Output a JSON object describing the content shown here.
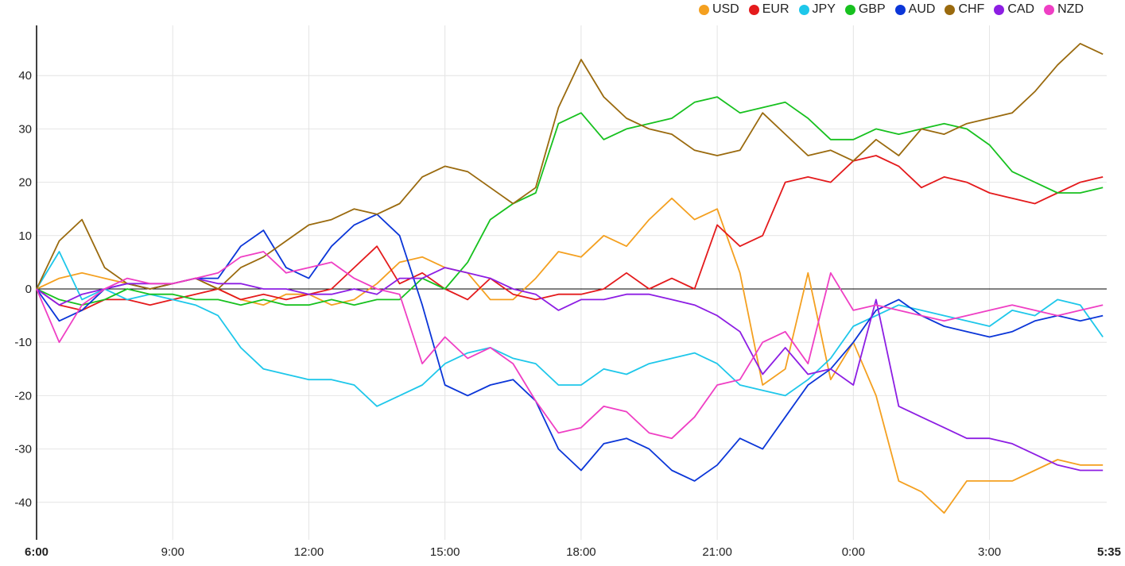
{
  "chart_data": {
    "type": "line",
    "title": "",
    "xlabel": "",
    "ylabel": "",
    "ylim": [
      -47,
      49
    ],
    "x_ticks": [
      "6:00",
      "9:00",
      "12:00",
      "15:00",
      "18:00",
      "21:00",
      "0:00",
      "3:00",
      "5:35"
    ],
    "x_ticks_bold": [
      "6:00",
      "5:35"
    ],
    "y_ticks": [
      40,
      30,
      20,
      10,
      0,
      -10,
      -20,
      -30,
      -40
    ],
    "grid": true,
    "legend_position": "top-right",
    "x_hours": [
      0,
      0.5,
      1,
      1.5,
      2,
      2.5,
      3,
      3.5,
      4,
      4.5,
      5,
      5.5,
      6,
      6.5,
      7,
      7.5,
      8,
      8.5,
      9,
      9.5,
      10,
      10.5,
      11,
      11.5,
      12,
      12.5,
      13,
      13.5,
      14,
      14.5,
      15,
      15.5,
      16,
      16.5,
      17,
      17.5,
      18,
      18.5,
      19,
      19.5,
      20,
      20.5,
      21,
      21.5,
      22,
      22.5,
      23,
      23.5
    ],
    "series": [
      {
        "name": "USD",
        "color": "#f4a020",
        "values": [
          0,
          2,
          3,
          2,
          1,
          0,
          1,
          2,
          0,
          -2,
          -3,
          -1,
          -1,
          -3,
          -2,
          1,
          5,
          6,
          4,
          3,
          -2,
          -2,
          2,
          7,
          6,
          10,
          8,
          13,
          17,
          13,
          15,
          3,
          -18,
          -15,
          3,
          -17,
          -10,
          -20,
          -36,
          -38,
          -42,
          -36,
          -36,
          -36,
          -34,
          -32,
          -33,
          -33
        ]
      },
      {
        "name": "EUR",
        "color": "#e41a1c",
        "values": [
          0,
          -3,
          -4,
          -2,
          -2,
          -3,
          -2,
          -1,
          0,
          -2,
          -1,
          -2,
          -1,
          0,
          4,
          8,
          1,
          3,
          0,
          -2,
          2,
          -1,
          -2,
          -1,
          -1,
          0,
          3,
          0,
          2,
          0,
          12,
          8,
          10,
          20,
          21,
          20,
          24,
          25,
          23,
          19,
          21,
          20,
          18,
          17,
          16,
          18,
          20,
          21
        ]
      },
      {
        "name": "JPY",
        "color": "#1ec7ea",
        "values": [
          0,
          7,
          -2,
          0,
          -2,
          -1,
          -2,
          -3,
          -5,
          -11,
          -15,
          -16,
          -17,
          -17,
          -18,
          -22,
          -20,
          -18,
          -14,
          -12,
          -11,
          -13,
          -14,
          -18,
          -18,
          -15,
          -16,
          -14,
          -13,
          -12,
          -14,
          -18,
          -19,
          -20,
          -17,
          -13,
          -7,
          -5,
          -3,
          -4,
          -5,
          -6,
          -7,
          -4,
          -5,
          -2,
          -3,
          -9
        ]
      },
      {
        "name": "GBP",
        "color": "#17c11f",
        "values": [
          0,
          -2,
          -3,
          -2,
          0,
          -1,
          -1,
          -2,
          -2,
          -3,
          -2,
          -3,
          -3,
          -2,
          -3,
          -2,
          -2,
          2,
          0,
          5,
          13,
          16,
          18,
          31,
          33,
          28,
          30,
          31,
          32,
          35,
          36,
          33,
          34,
          35,
          32,
          28,
          28,
          30,
          29,
          30,
          31,
          30,
          27,
          22,
          20,
          18,
          18,
          19
        ]
      },
      {
        "name": "AUD",
        "color": "#0b36d8",
        "values": [
          0,
          -6,
          -4,
          0,
          1,
          0,
          1,
          2,
          2,
          8,
          11,
          4,
          2,
          8,
          12,
          14,
          10,
          -3,
          -18,
          -20,
          -18,
          -17,
          -21,
          -30,
          -34,
          -29,
          -28,
          -30,
          -34,
          -36,
          -33,
          -28,
          -30,
          -24,
          -18,
          -15,
          -10,
          -4,
          -2,
          -5,
          -7,
          -8,
          -9,
          -8,
          -6,
          -5,
          -6,
          -5
        ]
      },
      {
        "name": "CHF",
        "color": "#9a6a0e",
        "values": [
          0,
          9,
          13,
          4,
          1,
          0,
          1,
          2,
          0,
          4,
          6,
          9,
          12,
          13,
          15,
          14,
          16,
          21,
          23,
          22,
          19,
          16,
          19,
          34,
          43,
          36,
          32,
          30,
          29,
          26,
          25,
          26,
          33,
          29,
          25,
          26,
          24,
          28,
          25,
          30,
          29,
          31,
          32,
          33,
          37,
          42,
          46,
          44
        ]
      },
      {
        "name": "CAD",
        "color": "#8d1ee3",
        "values": [
          0,
          -3,
          -1,
          0,
          1,
          1,
          1,
          2,
          1,
          1,
          0,
          0,
          -1,
          -1,
          0,
          -1,
          2,
          2,
          4,
          3,
          2,
          0,
          -1,
          -4,
          -2,
          -2,
          -1,
          -1,
          -2,
          -3,
          -5,
          -8,
          -16,
          -11,
          -16,
          -15,
          -18,
          -2,
          -22,
          -24,
          -26,
          -28,
          -28,
          -29,
          -31,
          -33,
          -34,
          -34
        ]
      },
      {
        "name": "NZD",
        "color": "#ef3fc4",
        "values": [
          0,
          -10,
          -3,
          0,
          2,
          1,
          1,
          2,
          3,
          6,
          7,
          3,
          4,
          5,
          2,
          0,
          -1,
          -14,
          -9,
          -13,
          -11,
          -14,
          -21,
          -27,
          -26,
          -22,
          -23,
          -27,
          -28,
          -24,
          -18,
          -17,
          -10,
          -8,
          -14,
          3,
          -4,
          -3,
          -4,
          -5,
          -6,
          -5,
          -4,
          -3,
          -4,
          -5,
          -4,
          -3
        ]
      }
    ]
  }
}
